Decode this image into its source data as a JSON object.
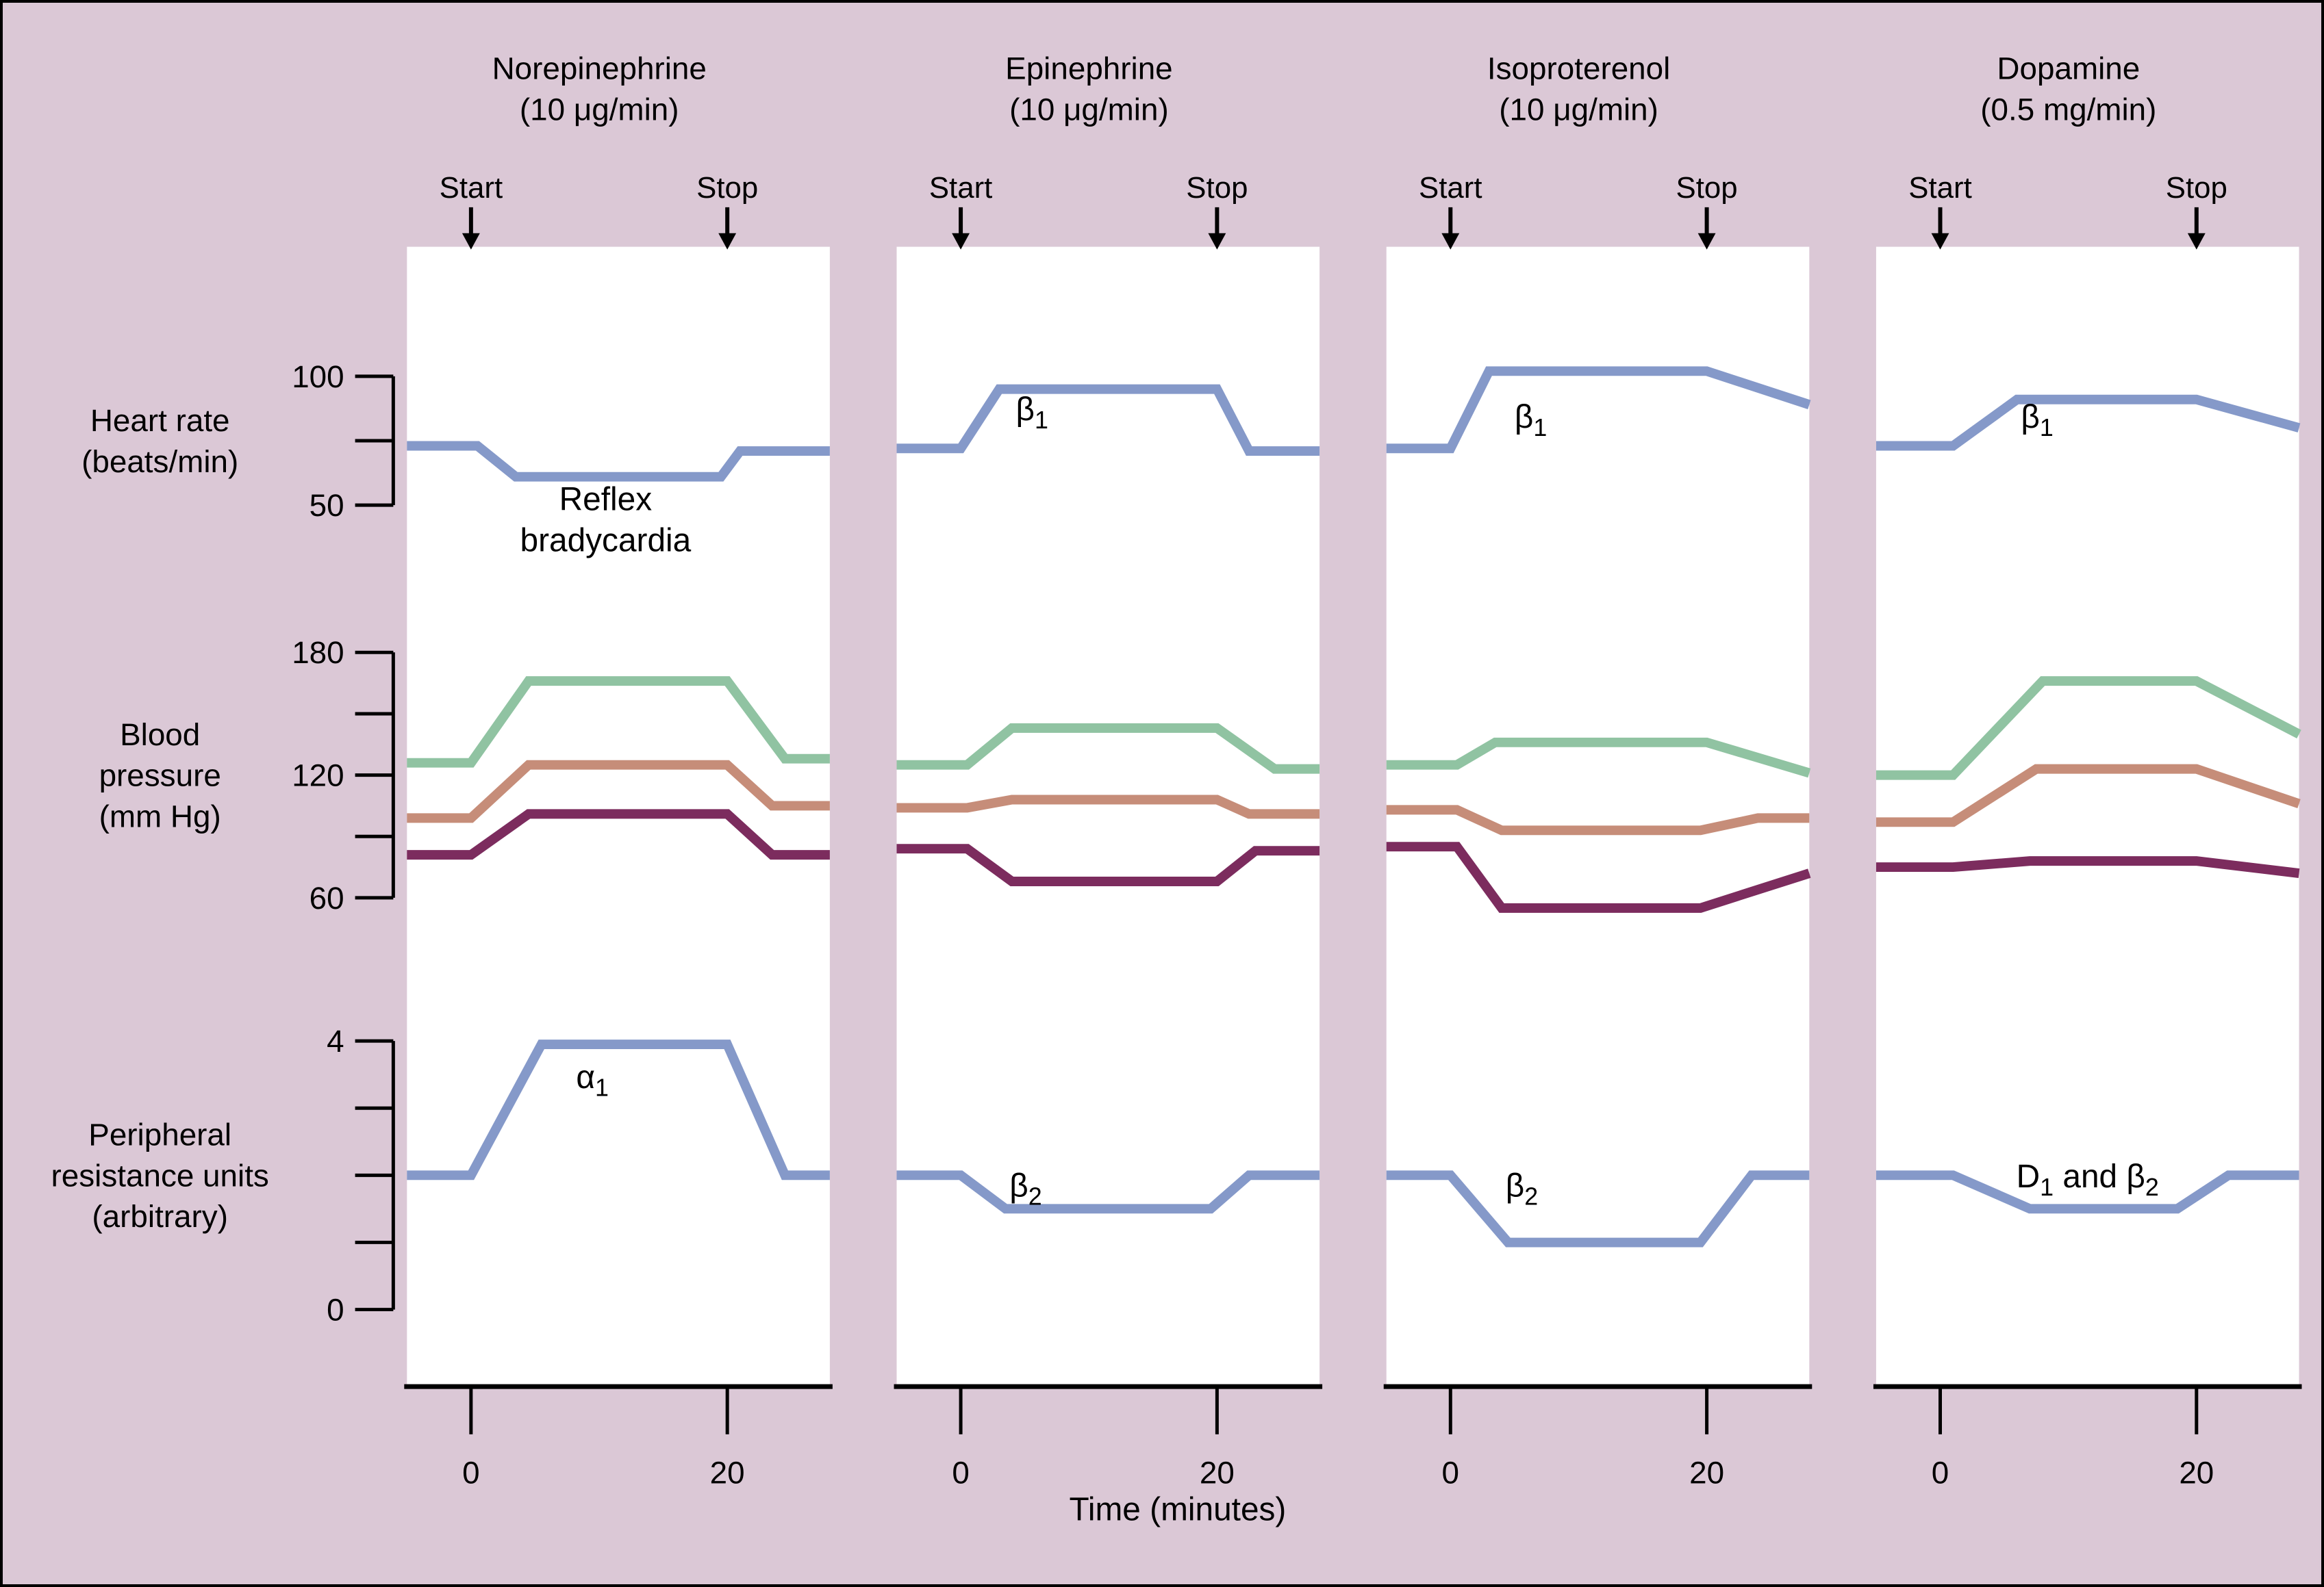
{
  "figure": {
    "background_color": "#dbc8d6",
    "panel_color": "#ffffff",
    "axis_color": "#000000",
    "text_color": "#000000",
    "arrow_labels": {
      "start": "Start",
      "stop": "Stop"
    }
  },
  "chart_data": {
    "type": "line",
    "x_axis": {
      "label": "Time (minutes)",
      "ticks": [
        0,
        20
      ],
      "domain_minutes": [
        -5,
        28
      ]
    },
    "rows": [
      {
        "id": "heart_rate",
        "label_lines": [
          "Heart rate",
          "(beats/min)"
        ],
        "axis": {
          "min": 50,
          "max": 100,
          "ticks": [
            {
              "value": 100,
              "label": "100"
            },
            {
              "value": 75,
              "label": ""
            },
            {
              "value": 50,
              "label": "50"
            }
          ]
        }
      },
      {
        "id": "blood_pressure",
        "label_lines": [
          "Blood",
          "pressure",
          "(mm Hg)"
        ],
        "axis": {
          "min": 60,
          "max": 180,
          "ticks": [
            {
              "value": 180,
              "label": "180"
            },
            {
              "value": 150,
              "label": ""
            },
            {
              "value": 120,
              "label": "120"
            },
            {
              "value": 90,
              "label": ""
            },
            {
              "value": 60,
              "label": "60"
            }
          ]
        }
      },
      {
        "id": "peripheral_resistance",
        "label_lines": [
          "Peripheral",
          "resistance units",
          "(arbitrary)"
        ],
        "axis": {
          "min": 0,
          "max": 4,
          "ticks": [
            {
              "value": 4,
              "label": "4"
            },
            {
              "value": 3,
              "label": ""
            },
            {
              "value": 2,
              "label": ""
            },
            {
              "value": 1,
              "label": ""
            },
            {
              "value": 0,
              "label": "0"
            }
          ]
        }
      }
    ],
    "series_colors": {
      "heart_rate": "#8599c9",
      "systolic": "#90c3a2",
      "mean": "#c68d79",
      "diastolic": "#7c2c5e",
      "resistance": "#8599c9"
    },
    "panels": [
      {
        "drug": "Norepinephrine",
        "dose": "(10 μg/min)",
        "infusion": {
          "start_minute": 0,
          "stop_minute": 20
        },
        "heart_rate": {
          "series": [
            {
              "name": "heart_rate",
              "points": [
                [
                  -5,
                  73
                ],
                [
                  0.5,
                  73
                ],
                [
                  3.5,
                  61
                ],
                [
                  19.5,
                  61
                ],
                [
                  21,
                  71
                ],
                [
                  28,
                  71
                ]
              ]
            }
          ],
          "annotations": [
            {
              "lines": [
                [
                  [
                    "Reflex",
                    0
                  ]
                ],
                [
                  [
                    "bradycardia",
                    0
                  ]
                ]
              ],
              "t": 10.5,
              "v": 48,
              "anchor": "middle"
            }
          ]
        },
        "blood_pressure": {
          "series": [
            {
              "name": "systolic",
              "points": [
                [
                  -5,
                  126
                ],
                [
                  0,
                  126
                ],
                [
                  4.5,
                  166
                ],
                [
                  20,
                  166
                ],
                [
                  24.5,
                  128
                ],
                [
                  28,
                  128
                ]
              ]
            },
            {
              "name": "mean",
              "points": [
                [
                  -5,
                  99
                ],
                [
                  0,
                  99
                ],
                [
                  4.5,
                  125
                ],
                [
                  20,
                  125
                ],
                [
                  23.5,
                  105
                ],
                [
                  28,
                  105
                ]
              ]
            },
            {
              "name": "diastolic",
              "points": [
                [
                  -5,
                  81
                ],
                [
                  0,
                  81
                ],
                [
                  4.5,
                  101
                ],
                [
                  20,
                  101
                ],
                [
                  23.5,
                  81
                ],
                [
                  28,
                  81
                ]
              ]
            }
          ],
          "annotations": []
        },
        "peripheral_resistance": {
          "series": [
            {
              "name": "resistance",
              "points": [
                [
                  -5,
                  2
                ],
                [
                  0,
                  2
                ],
                [
                  5.5,
                  3.95
                ],
                [
                  20,
                  3.95
                ],
                [
                  24.5,
                  2
                ],
                [
                  28,
                  2
                ]
              ]
            }
          ],
          "annotations": [
            {
              "lines": [
                [
                  [
                    "α",
                    0
                  ],
                  [
                    "1",
                    1
                  ]
                ]
              ],
              "t": 8.2,
              "v": 3.3,
              "anchor": "start"
            }
          ]
        }
      },
      {
        "drug": "Epinephrine",
        "dose": "(10 μg/min)",
        "infusion": {
          "start_minute": 0,
          "stop_minute": 20
        },
        "heart_rate": {
          "series": [
            {
              "name": "heart_rate",
              "points": [
                [
                  -5,
                  72
                ],
                [
                  0,
                  72
                ],
                [
                  3,
                  95
                ],
                [
                  20,
                  95
                ],
                [
                  22.5,
                  71
                ],
                [
                  28,
                  71
                ]
              ]
            }
          ],
          "annotations": [
            {
              "lines": [
                [
                  [
                    "β",
                    0
                  ],
                  [
                    "1",
                    1
                  ]
                ]
              ],
              "t": 4.3,
              "v": 83,
              "anchor": "start"
            }
          ]
        },
        "blood_pressure": {
          "series": [
            {
              "name": "systolic",
              "points": [
                [
                  -5,
                  125
                ],
                [
                  0.5,
                  125
                ],
                [
                  4,
                  143
                ],
                [
                  20,
                  143
                ],
                [
                  24.5,
                  123
                ],
                [
                  28,
                  123
                ]
              ]
            },
            {
              "name": "mean",
              "points": [
                [
                  -5,
                  104
                ],
                [
                  0.5,
                  104
                ],
                [
                  4,
                  108
                ],
                [
                  20,
                  108
                ],
                [
                  22.5,
                  101
                ],
                [
                  28,
                  101
                ]
              ]
            },
            {
              "name": "diastolic",
              "points": [
                [
                  -5,
                  84
                ],
                [
                  0.5,
                  84
                ],
                [
                  4,
                  68
                ],
                [
                  20,
                  68
                ],
                [
                  23,
                  83
                ],
                [
                  28,
                  83
                ]
              ]
            }
          ],
          "annotations": []
        },
        "peripheral_resistance": {
          "series": [
            {
              "name": "resistance",
              "points": [
                [
                  -5,
                  2
                ],
                [
                  0,
                  2
                ],
                [
                  3.5,
                  1.5
                ],
                [
                  19.5,
                  1.5
                ],
                [
                  22.5,
                  2
                ],
                [
                  28,
                  2
                ]
              ]
            }
          ],
          "annotations": [
            {
              "lines": [
                [
                  [
                    "β",
                    0
                  ],
                  [
                    "2",
                    1
                  ]
                ]
              ],
              "t": 3.8,
              "v": 1.68,
              "anchor": "start"
            }
          ]
        }
      },
      {
        "drug": "Isoproterenol",
        "dose": "(10 μg/min)",
        "infusion": {
          "start_minute": 0,
          "stop_minute": 20
        },
        "heart_rate": {
          "series": [
            {
              "name": "heart_rate",
              "points": [
                [
                  -5,
                  72
                ],
                [
                  0,
                  72
                ],
                [
                  3,
                  102
                ],
                [
                  20,
                  102
                ],
                [
                  28,
                  89
                ]
              ]
            }
          ],
          "annotations": [
            {
              "lines": [
                [
                  [
                    "β",
                    0
                  ],
                  [
                    "1",
                    1
                  ]
                ]
              ],
              "t": 5,
              "v": 80,
              "anchor": "start"
            }
          ]
        },
        "blood_pressure": {
          "series": [
            {
              "name": "systolic",
              "points": [
                [
                  -5,
                  125
                ],
                [
                  0.5,
                  125
                ],
                [
                  3.5,
                  136
                ],
                [
                  20,
                  136
                ],
                [
                  28,
                  121
                ]
              ]
            },
            {
              "name": "mean",
              "points": [
                [
                  -5,
                  103
                ],
                [
                  0.5,
                  103
                ],
                [
                  4,
                  93
                ],
                [
                  19.5,
                  93
                ],
                [
                  24,
                  99
                ],
                [
                  28,
                  99
                ]
              ]
            },
            {
              "name": "diastolic",
              "points": [
                [
                  -5,
                  85
                ],
                [
                  0.5,
                  85
                ],
                [
                  4,
                  55
                ],
                [
                  19.5,
                  55
                ],
                [
                  28,
                  72
                ]
              ]
            }
          ],
          "annotations": []
        },
        "peripheral_resistance": {
          "series": [
            {
              "name": "resistance",
              "points": [
                [
                  -5,
                  2
                ],
                [
                  0,
                  2
                ],
                [
                  4.5,
                  1
                ],
                [
                  19.5,
                  1
                ],
                [
                  23.5,
                  2
                ],
                [
                  28,
                  2
                ]
              ]
            }
          ],
          "annotations": [
            {
              "lines": [
                [
                  [
                    "β",
                    0
                  ],
                  [
                    "2",
                    1
                  ]
                ]
              ],
              "t": 4.3,
              "v": 1.68,
              "anchor": "start"
            }
          ]
        }
      },
      {
        "drug": "Dopamine",
        "dose": "(0.5 mg/min)",
        "infusion": {
          "start_minute": 0,
          "stop_minute": 20
        },
        "heart_rate": {
          "series": [
            {
              "name": "heart_rate",
              "points": [
                [
                  -5,
                  73
                ],
                [
                  1,
                  73
                ],
                [
                  6,
                  91
                ],
                [
                  20,
                  91
                ],
                [
                  28,
                  80
                ]
              ]
            }
          ],
          "annotations": [
            {
              "lines": [
                [
                  [
                    "β",
                    0
                  ],
                  [
                    "1",
                    1
                  ]
                ]
              ],
              "t": 6.3,
              "v": 80,
              "anchor": "start"
            }
          ]
        },
        "blood_pressure": {
          "series": [
            {
              "name": "systolic",
              "points": [
                [
                  -5,
                  120
                ],
                [
                  1,
                  120
                ],
                [
                  8,
                  166
                ],
                [
                  20,
                  166
                ],
                [
                  28,
                  140
                ]
              ]
            },
            {
              "name": "mean",
              "points": [
                [
                  -5,
                  97
                ],
                [
                  1,
                  97
                ],
                [
                  7.5,
                  123
                ],
                [
                  20,
                  123
                ],
                [
                  28,
                  106
                ]
              ]
            },
            {
              "name": "diastolic",
              "points": [
                [
                  -5,
                  75
                ],
                [
                  1,
                  75
                ],
                [
                  7,
                  78
                ],
                [
                  20,
                  78
                ],
                [
                  28,
                  72
                ]
              ]
            }
          ],
          "annotations": []
        },
        "peripheral_resistance": {
          "series": [
            {
              "name": "resistance",
              "points": [
                [
                  -5,
                  2
                ],
                [
                  1,
                  2
                ],
                [
                  7,
                  1.5
                ],
                [
                  18.5,
                  1.5
                ],
                [
                  22.5,
                  2
                ],
                [
                  28,
                  2
                ]
              ]
            }
          ],
          "annotations": [
            {
              "lines": [
                [
                  [
                    "D",
                    0
                  ],
                  [
                    "1",
                    1
                  ],
                  [
                    " and β",
                    0
                  ],
                  [
                    "2",
                    1
                  ]
                ]
              ],
              "t": 11.5,
              "v": 1.82,
              "anchor": "middle"
            }
          ]
        }
      }
    ]
  }
}
